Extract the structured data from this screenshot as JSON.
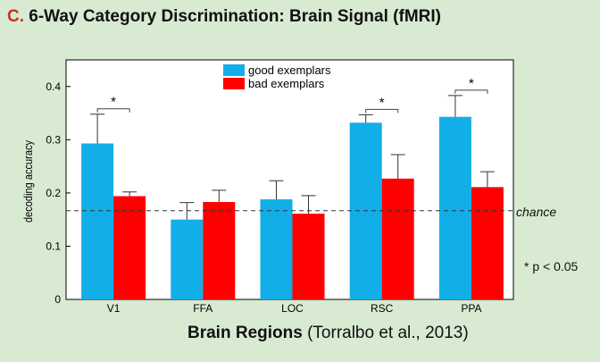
{
  "title": {
    "letter": "C.",
    "text": "6-Way Category Discrimination: Brain Signal (fMRI)"
  },
  "caption": {
    "bold": "Brain Regions",
    "citation": "(Torralbo et al., 2013)"
  },
  "chance_label": "chance",
  "significance_note": "*  p < 0.05",
  "chart_data": {
    "type": "bar",
    "categories": [
      "V1",
      "FFA",
      "LOC",
      "RSC",
      "PPA"
    ],
    "ylabel": "decoding accuracy",
    "xlabel": "Brain Regions",
    "ylim": [
      0,
      0.45
    ],
    "yticks": [
      0,
      0.1,
      0.2,
      0.3,
      0.4
    ],
    "ytick_labels": [
      "0",
      "0.1",
      "0.2",
      "0.3",
      "0.4"
    ],
    "chance_level": 0.1667,
    "legend_position": "top-center",
    "series": [
      {
        "name": "good exemplars",
        "color": "#12aee8",
        "values": [
          0.293,
          0.15,
          0.188,
          0.332,
          0.343
        ],
        "error": [
          0.055,
          0.032,
          0.035,
          0.015,
          0.04
        ]
      },
      {
        "name": "bad exemplars",
        "color": "#ff0000",
        "values": [
          0.194,
          0.183,
          0.161,
          0.227,
          0.211
        ],
        "error": [
          0.008,
          0.022,
          0.034,
          0.045,
          0.029
        ]
      }
    ],
    "significant_marks": [
      {
        "category": "V1",
        "label": "*"
      },
      {
        "category": "RSC",
        "label": "*"
      },
      {
        "category": "PPA",
        "label": "*"
      }
    ]
  }
}
